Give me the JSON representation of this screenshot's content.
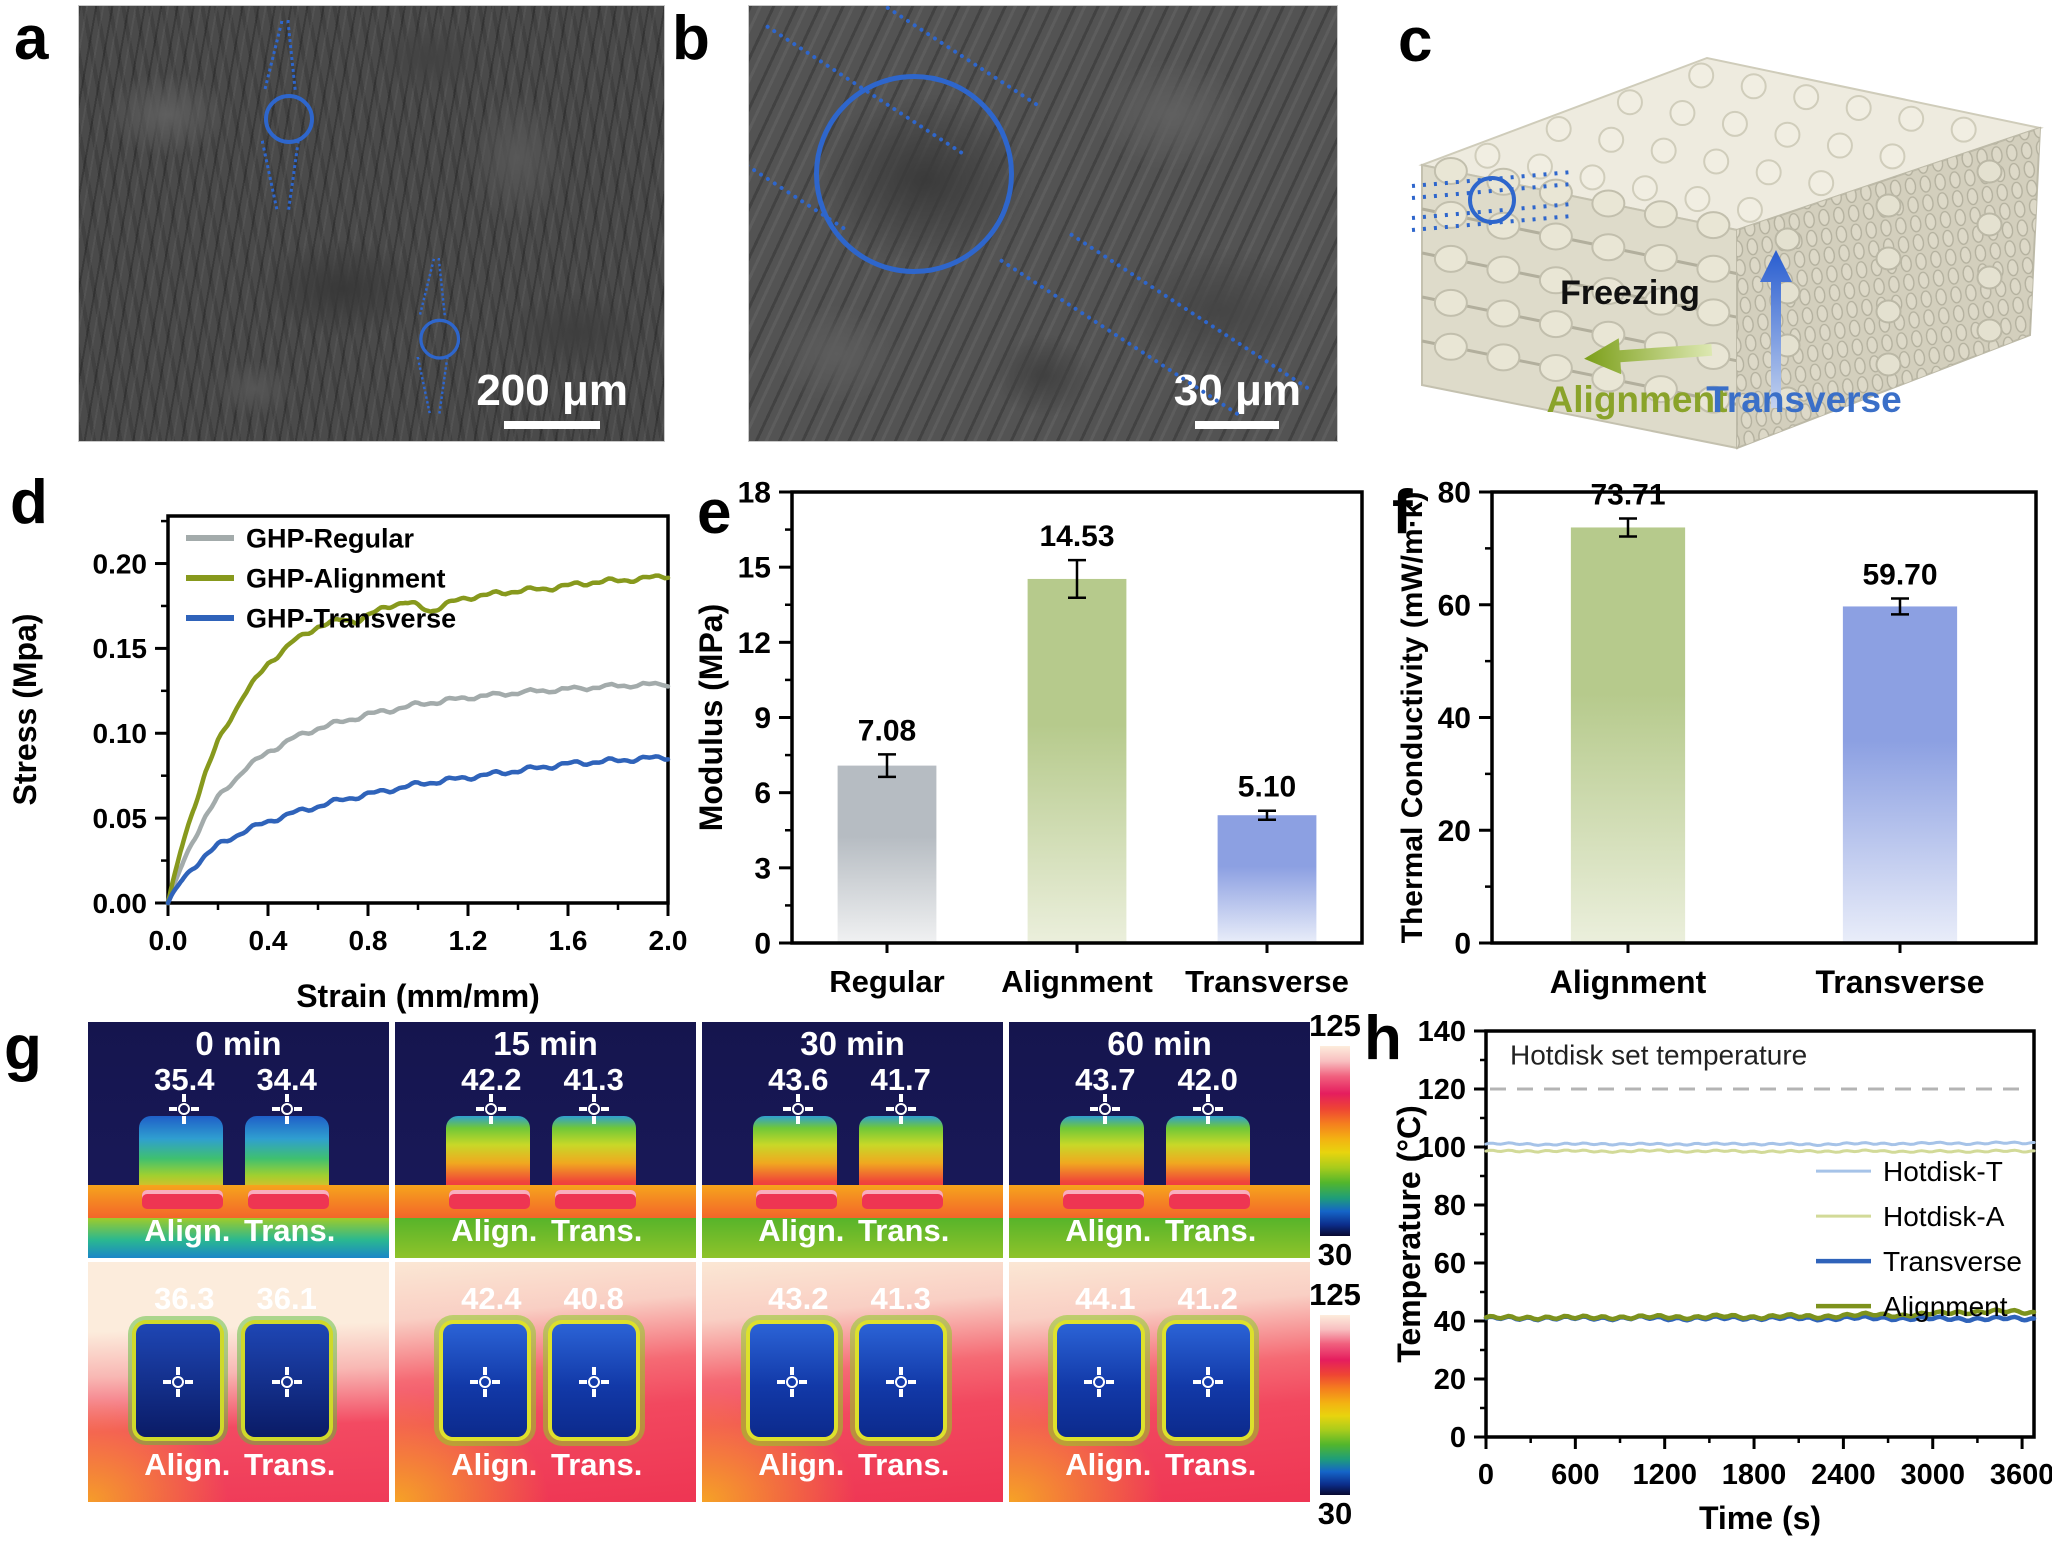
{
  "panel_letters": {
    "a": "a",
    "b": "b",
    "c": "c",
    "d": "d",
    "e": "e",
    "f": "f",
    "g": "g",
    "h": "h"
  },
  "panel_a": {
    "scale_bar": "200 μm"
  },
  "panel_b": {
    "scale_bar": "30 μm"
  },
  "panel_c": {
    "freezing_label": "Freezing",
    "alignment_label": "Alignment",
    "transverse_label": "Transverse",
    "alignment_color": "#8aa32a",
    "transverse_color": "#3a6fc8"
  },
  "panel_g": {
    "align_abbr": "Align.",
    "trans_abbr": "Trans.",
    "colorbar_row1": {
      "max": "125",
      "min": "30"
    },
    "colorbar_row2": {
      "max": "125",
      "min": "30"
    },
    "columns": [
      {
        "time": "0 min",
        "row1": {
          "align": "35.4",
          "trans": "34.4"
        },
        "row2": {
          "align": "36.3",
          "trans": "36.1"
        }
      },
      {
        "time": "15 min",
        "row1": {
          "align": "42.2",
          "trans": "41.3"
        },
        "row2": {
          "align": "42.4",
          "trans": "40.8"
        }
      },
      {
        "time": "30 min",
        "row1": {
          "align": "43.6",
          "trans": "41.7"
        },
        "row2": {
          "align": "43.2",
          "trans": "41.3"
        }
      },
      {
        "time": "60 min",
        "row1": {
          "align": "43.7",
          "trans": "42.0"
        },
        "row2": {
          "align": "44.1",
          "trans": "41.2"
        }
      }
    ]
  },
  "chart_data": [
    {
      "id": "d",
      "type": "line",
      "title": "",
      "xlabel": "Strain (mm/mm)",
      "ylabel": "Stress (Mpa)",
      "xlim": [
        0,
        2.0
      ],
      "ylim": [
        0,
        0.228
      ],
      "xticks": [
        0.0,
        0.4,
        0.8,
        1.2,
        1.6,
        2.0
      ],
      "xtick_labels": [
        "0.0",
        "0.4",
        "0.8",
        "1.2",
        "1.6",
        "2.0"
      ],
      "yticks": [
        0.0,
        0.05,
        0.1,
        0.15,
        0.2
      ],
      "ytick_labels": [
        "0.00",
        "0.05",
        "0.10",
        "0.15",
        "0.20"
      ],
      "grid": false,
      "legend_position": "top-left",
      "series": [
        {
          "name": "GHP-Regular",
          "color": "#a3abab",
          "x": [
            0,
            0.05,
            0.1,
            0.15,
            0.2,
            0.3,
            0.4,
            0.5,
            0.6,
            0.7,
            0.8,
            0.9,
            1.0,
            1.1,
            1.2,
            1.4,
            1.6,
            1.8,
            2.0
          ],
          "y": [
            0,
            0.02,
            0.037,
            0.051,
            0.062,
            0.078,
            0.089,
            0.097,
            0.103,
            0.107,
            0.111,
            0.114,
            0.117,
            0.119,
            0.121,
            0.124,
            0.126,
            0.128,
            0.129
          ]
        },
        {
          "name": "GHP-Alignment",
          "color": "#87991d",
          "x": [
            0,
            0.05,
            0.1,
            0.15,
            0.2,
            0.3,
            0.4,
            0.5,
            0.6,
            0.7,
            0.75,
            0.8,
            0.85,
            0.9,
            0.95,
            1.0,
            1.05,
            1.1,
            1.15,
            1.2,
            1.3,
            1.4,
            1.5,
            1.6,
            1.7,
            1.8,
            1.9,
            2.0
          ],
          "y": [
            0,
            0.03,
            0.055,
            0.077,
            0.095,
            0.122,
            0.141,
            0.154,
            0.163,
            0.167,
            0.166,
            0.169,
            0.173,
            0.176,
            0.177,
            0.175,
            0.172,
            0.175,
            0.178,
            0.18,
            0.182,
            0.184,
            0.185,
            0.187,
            0.189,
            0.19,
            0.191,
            0.193
          ]
        },
        {
          "name": "GHP-Transverse",
          "color": "#2f63ba",
          "x": [
            0,
            0.05,
            0.1,
            0.15,
            0.2,
            0.3,
            0.4,
            0.5,
            0.6,
            0.7,
            0.8,
            0.9,
            1.0,
            1.1,
            1.2,
            1.3,
            1.4,
            1.5,
            1.6,
            1.7,
            1.8,
            1.9,
            2.0
          ],
          "y": [
            0,
            0.012,
            0.021,
            0.028,
            0.034,
            0.042,
            0.048,
            0.053,
            0.057,
            0.061,
            0.064,
            0.067,
            0.07,
            0.072,
            0.074,
            0.076,
            0.078,
            0.08,
            0.082,
            0.083,
            0.084,
            0.085,
            0.086
          ]
        }
      ]
    },
    {
      "id": "e",
      "type": "bar",
      "xlabel": "",
      "ylabel": "Modulus (MPa)",
      "ylim": [
        0,
        18
      ],
      "yticks": [
        0,
        3,
        6,
        9,
        12,
        15,
        18
      ],
      "ytick_labels": [
        "0",
        "3",
        "6",
        "9",
        "12",
        "15",
        "18"
      ],
      "categories": [
        "Regular",
        "Alignment",
        "Transverse"
      ],
      "values": [
        7.08,
        14.53,
        5.1
      ],
      "errors": [
        0.45,
        0.75,
        0.18
      ],
      "value_labels": [
        "7.08",
        "14.53",
        "5.10"
      ],
      "bar_top_colors": [
        "#b6bcc2",
        "#b6ca8c",
        "#8ca0e2"
      ],
      "bar_bottom_colors": [
        "#f0f1f2",
        "#ebefdc",
        "#e9edf9"
      ]
    },
    {
      "id": "f",
      "type": "bar",
      "xlabel": "",
      "ylabel": "Thermal Conductivity (mW/m·k)",
      "ylim": [
        0,
        80
      ],
      "yticks": [
        0,
        20,
        40,
        60,
        80
      ],
      "ytick_labels": [
        "0",
        "20",
        "40",
        "60",
        "80"
      ],
      "categories": [
        "Alignment",
        "Transverse"
      ],
      "values": [
        73.71,
        59.7
      ],
      "errors": [
        1.6,
        1.4
      ],
      "value_labels": [
        "73.71",
        "59.70"
      ],
      "bar_top_colors": [
        "#b6ca8c",
        "#8ca0e2"
      ],
      "bar_bottom_colors": [
        "#ebefdc",
        "#e9edf9"
      ]
    },
    {
      "id": "h",
      "type": "line",
      "xlabel": "Time (s)",
      "ylabel": "Temperature (°C)",
      "xlim": [
        0,
        3680
      ],
      "ylim": [
        0,
        140
      ],
      "xticks": [
        0,
        600,
        1200,
        1800,
        2400,
        3000,
        3600
      ],
      "xtick_labels": [
        "0",
        "600",
        "1200",
        "1800",
        "2400",
        "3000",
        "3600"
      ],
      "yticks": [
        0,
        20,
        40,
        60,
        80,
        100,
        120,
        140
      ],
      "ytick_labels": [
        "0",
        "20",
        "40",
        "60",
        "80",
        "100",
        "120",
        "140"
      ],
      "grid": false,
      "legend_position": "right-middle",
      "ref_line": {
        "y": 120,
        "label": "Hotdisk set temperature",
        "label_y": 128.5
      },
      "series": [
        {
          "name": "Hotdisk-T",
          "color": "#a6c3e8",
          "x": [
            0,
            200,
            400,
            600,
            800,
            1000,
            1200,
            1400,
            1600,
            1800,
            2000,
            2200,
            2400,
            2600,
            2800,
            3000,
            3200,
            3400,
            3600,
            3680
          ],
          "y": [
            101.0,
            101.1,
            100.9,
            101.0,
            101.1,
            101.0,
            100.9,
            101.1,
            101.0,
            101.1,
            101.0,
            100.8,
            101.2,
            101.1,
            101.2,
            101.3,
            101.2,
            101.4,
            101.3,
            101.4
          ]
        },
        {
          "name": "Hotdisk-A",
          "color": "#d2da98",
          "x": [
            0,
            200,
            400,
            600,
            800,
            1000,
            1200,
            1400,
            1600,
            1800,
            2000,
            2200,
            2400,
            2600,
            2800,
            3000,
            3200,
            3400,
            3600,
            3680
          ],
          "y": [
            98.6,
            98.5,
            98.7,
            98.6,
            98.5,
            98.6,
            98.7,
            98.5,
            98.6,
            98.5,
            98.4,
            98.6,
            98.5,
            98.6,
            98.5,
            98.4,
            98.5,
            98.6,
            98.5,
            98.5
          ]
        },
        {
          "name": "Transverse",
          "color": "#2f63ba",
          "x": [
            0,
            200,
            400,
            600,
            800,
            1000,
            1200,
            1400,
            1600,
            1800,
            2000,
            2200,
            2400,
            2600,
            2800,
            3000,
            3200,
            3400,
            3600,
            3680
          ],
          "y": [
            41.0,
            40.8,
            41.1,
            40.9,
            41.0,
            41.1,
            40.8,
            41.0,
            40.9,
            41.1,
            41.0,
            40.8,
            41.1,
            40.9,
            41.0,
            40.8,
            40.7,
            40.9,
            40.7,
            40.6
          ]
        },
        {
          "name": "Alignment",
          "color": "#7d921d",
          "x": [
            0,
            200,
            400,
            600,
            800,
            1000,
            1200,
            1400,
            1600,
            1800,
            2000,
            2200,
            2400,
            2600,
            2800,
            3000,
            3200,
            3400,
            3600,
            3680
          ],
          "y": [
            41.2,
            41.0,
            41.3,
            41.1,
            41.4,
            41.2,
            41.5,
            41.3,
            41.6,
            41.4,
            41.7,
            41.5,
            41.9,
            42.2,
            42.0,
            42.5,
            43.0,
            43.4,
            43.0,
            42.8
          ]
        }
      ]
    }
  ]
}
